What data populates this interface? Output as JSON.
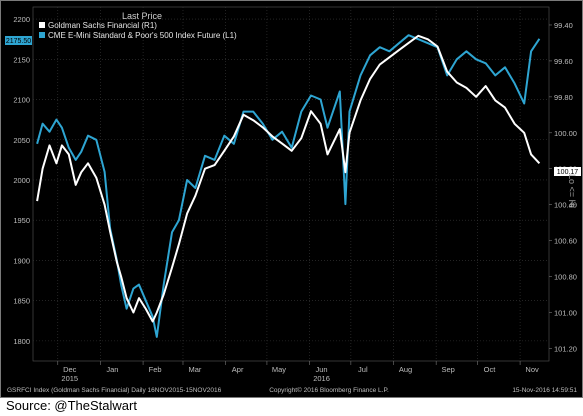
{
  "chart_data": {
    "type": "line",
    "title": "Last Price",
    "series": [
      {
        "name": "Goldman Sachs Financial  (R1)",
        "axis": "right",
        "color": "#ffffff",
        "points": [
          [
            "2015-11-16",
            100.38
          ],
          [
            "2015-11-20",
            100.2
          ],
          [
            "2015-11-25",
            100.07
          ],
          [
            "2015-11-30",
            100.17
          ],
          [
            "2015-12-04",
            100.07
          ],
          [
            "2015-12-09",
            100.12
          ],
          [
            "2015-12-14",
            100.29
          ],
          [
            "2015-12-18",
            100.22
          ],
          [
            "2015-12-23",
            100.17
          ],
          [
            "2015-12-29",
            100.25
          ],
          [
            "2016-01-04",
            100.4
          ],
          [
            "2016-01-08",
            100.55
          ],
          [
            "2016-01-13",
            100.72
          ],
          [
            "2016-01-16",
            100.8
          ],
          [
            "2016-01-20",
            100.92
          ],
          [
            "2016-01-25",
            101.0
          ],
          [
            "2016-01-29",
            100.92
          ],
          [
            "2016-02-03",
            100.98
          ],
          [
            "2016-02-08",
            101.05
          ],
          [
            "2016-02-11",
            101.0
          ],
          [
            "2016-02-16",
            100.9
          ],
          [
            "2016-02-22",
            100.75
          ],
          [
            "2016-02-27",
            100.62
          ],
          [
            "2016-03-04",
            100.45
          ],
          [
            "2016-03-10",
            100.35
          ],
          [
            "2016-03-17",
            100.2
          ],
          [
            "2016-03-24",
            100.18
          ],
          [
            "2016-03-31",
            100.1
          ],
          [
            "2016-04-07",
            100.02
          ],
          [
            "2016-04-14",
            99.9
          ],
          [
            "2016-04-21",
            99.93
          ],
          [
            "2016-04-28",
            99.97
          ],
          [
            "2016-05-05",
            100.02
          ],
          [
            "2016-05-12",
            100.06
          ],
          [
            "2016-05-19",
            100.1
          ],
          [
            "2016-05-26",
            100.03
          ],
          [
            "2016-06-02",
            99.88
          ],
          [
            "2016-06-09",
            99.95
          ],
          [
            "2016-06-14",
            100.12
          ],
          [
            "2016-06-23",
            99.98
          ],
          [
            "2016-06-27",
            100.22
          ],
          [
            "2016-06-30",
            100.0
          ],
          [
            "2016-07-08",
            99.82
          ],
          [
            "2016-07-15",
            99.7
          ],
          [
            "2016-07-22",
            99.62
          ],
          [
            "2016-07-29",
            99.58
          ],
          [
            "2016-08-05",
            99.54
          ],
          [
            "2016-08-12",
            99.5
          ],
          [
            "2016-08-19",
            99.46
          ],
          [
            "2016-08-26",
            99.48
          ],
          [
            "2016-09-02",
            99.52
          ],
          [
            "2016-09-09",
            99.66
          ],
          [
            "2016-09-16",
            99.72
          ],
          [
            "2016-09-23",
            99.75
          ],
          [
            "2016-09-30",
            99.8
          ],
          [
            "2016-10-07",
            99.74
          ],
          [
            "2016-10-14",
            99.82
          ],
          [
            "2016-10-21",
            99.86
          ],
          [
            "2016-10-28",
            99.95
          ],
          [
            "2016-11-04",
            100.0
          ],
          [
            "2016-11-09",
            100.12
          ],
          [
            "2016-11-15",
            100.17
          ]
        ]
      },
      {
        "name": "CME E-Mini Standard & Poor's 500 Index Future  (L1)",
        "axis": "left",
        "color": "#2ea5d2",
        "points": [
          [
            "2015-11-16",
            2045
          ],
          [
            "2015-11-20",
            2070
          ],
          [
            "2015-11-25",
            2060
          ],
          [
            "2015-11-30",
            2075
          ],
          [
            "2015-12-04",
            2065
          ],
          [
            "2015-12-09",
            2040
          ],
          [
            "2015-12-14",
            2025
          ],
          [
            "2015-12-18",
            2035
          ],
          [
            "2015-12-23",
            2055
          ],
          [
            "2015-12-29",
            2050
          ],
          [
            "2016-01-04",
            2010
          ],
          [
            "2016-01-08",
            1940
          ],
          [
            "2016-01-13",
            1900
          ],
          [
            "2016-01-16",
            1870
          ],
          [
            "2016-01-20",
            1840
          ],
          [
            "2016-01-25",
            1865
          ],
          [
            "2016-01-29",
            1870
          ],
          [
            "2016-02-03",
            1850
          ],
          [
            "2016-02-08",
            1830
          ],
          [
            "2016-02-11",
            1805
          ],
          [
            "2016-02-16",
            1870
          ],
          [
            "2016-02-22",
            1935
          ],
          [
            "2016-02-27",
            1950
          ],
          [
            "2016-03-04",
            2000
          ],
          [
            "2016-03-10",
            1990
          ],
          [
            "2016-03-17",
            2030
          ],
          [
            "2016-03-24",
            2025
          ],
          [
            "2016-03-31",
            2055
          ],
          [
            "2016-04-07",
            2045
          ],
          [
            "2016-04-14",
            2085
          ],
          [
            "2016-04-21",
            2085
          ],
          [
            "2016-04-28",
            2070
          ],
          [
            "2016-05-05",
            2050
          ],
          [
            "2016-05-12",
            2060
          ],
          [
            "2016-05-19",
            2040
          ],
          [
            "2016-05-26",
            2085
          ],
          [
            "2016-06-02",
            2105
          ],
          [
            "2016-06-09",
            2100
          ],
          [
            "2016-06-14",
            2065
          ],
          [
            "2016-06-23",
            2110
          ],
          [
            "2016-06-27",
            1970
          ],
          [
            "2016-06-30",
            2085
          ],
          [
            "2016-07-08",
            2130
          ],
          [
            "2016-07-15",
            2155
          ],
          [
            "2016-07-22",
            2165
          ],
          [
            "2016-07-29",
            2160
          ],
          [
            "2016-08-05",
            2170
          ],
          [
            "2016-08-12",
            2180
          ],
          [
            "2016-08-19",
            2175
          ],
          [
            "2016-08-26",
            2170
          ],
          [
            "2016-09-02",
            2165
          ],
          [
            "2016-09-09",
            2130
          ],
          [
            "2016-09-16",
            2150
          ],
          [
            "2016-09-23",
            2160
          ],
          [
            "2016-09-30",
            2150
          ],
          [
            "2016-10-07",
            2145
          ],
          [
            "2016-10-14",
            2130
          ],
          [
            "2016-10-21",
            2140
          ],
          [
            "2016-10-28",
            2120
          ],
          [
            "2016-11-04",
            2095
          ],
          [
            "2016-11-09",
            2160
          ],
          [
            "2016-11-15",
            2175.5
          ]
        ]
      }
    ],
    "x_range": [
      "2015-11-13",
      "2016-11-22"
    ],
    "x_ticks": [
      {
        "label": "Dec",
        "date": "2015-12-01",
        "sub": "2015"
      },
      {
        "label": "Jan",
        "date": "2016-01-01"
      },
      {
        "label": "Feb",
        "date": "2016-02-01"
      },
      {
        "label": "Mar",
        "date": "2016-03-01"
      },
      {
        "label": "Apr",
        "date": "2016-04-01"
      },
      {
        "label": "May",
        "date": "2016-05-01"
      },
      {
        "label": "Jun",
        "date": "2016-06-01",
        "sub": "2016"
      },
      {
        "label": "Jul",
        "date": "2016-07-01"
      },
      {
        "label": "Aug",
        "date": "2016-08-01"
      },
      {
        "label": "Sep",
        "date": "2016-09-01"
      },
      {
        "label": "Oct",
        "date": "2016-10-01"
      },
      {
        "label": "Nov",
        "date": "2016-11-01"
      }
    ],
    "y_left": {
      "range": [
        1775,
        2215
      ],
      "ticks": [
        1800,
        1850,
        1900,
        1950,
        2000,
        2050,
        2100,
        2150,
        2200
      ],
      "last_value_label": "2175.50"
    },
    "y_right": {
      "range": [
        101.27,
        99.3
      ],
      "ticks": [
        {
          "value": 99.4,
          "label": "99.40"
        },
        {
          "value": 99.6,
          "label": "99.60"
        },
        {
          "value": 99.8,
          "label": "99.80"
        },
        {
          "value": 100.0,
          "label": "100.00"
        },
        {
          "value": 100.2,
          "label": "100.20"
        },
        {
          "value": 100.4,
          "label": "100.40"
        },
        {
          "value": 100.6,
          "label": "100.60"
        },
        {
          "value": 100.8,
          "label": "100.80"
        },
        {
          "value": 101.0,
          "label": "101.00"
        },
        {
          "value": 101.2,
          "label": "101.20"
        }
      ],
      "last_value_label": "100.17",
      "side_label": "Lo <= Hi"
    },
    "grid": true,
    "legend": "top-left"
  },
  "footer": {
    "left": "GSRFCI Index (Goldman Sachs Financial)  Daily 16NOV2015-15NOV2016",
    "center": "Copyright© 2016 Bloomberg Finance L.P.",
    "right": "15-Nov-2016 14:59:51"
  },
  "source": "Source: @TheStalwart",
  "colors": {
    "background": "#000000",
    "grid": "#3a3a3a",
    "axis_text": "#bdbdbd",
    "accent": "#2ea5d2"
  }
}
